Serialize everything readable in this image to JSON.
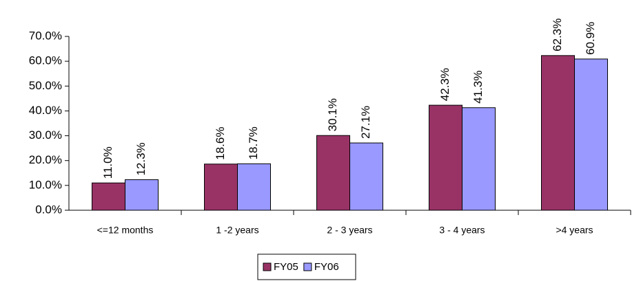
{
  "chart_data": {
    "type": "bar",
    "categories": [
      "<=12 months",
      "1 -2 years",
      "2 - 3 years",
      "3 - 4 years",
      ">4 years"
    ],
    "series": [
      {
        "name": "FY05",
        "color": "#993366",
        "values": [
          11.0,
          18.6,
          30.1,
          42.3,
          62.3
        ],
        "value_labels": [
          "11.0%",
          "18.6%",
          "30.1%",
          "42.3%",
          "62.3%"
        ]
      },
      {
        "name": "FY06",
        "color": "#9999ff",
        "values": [
          12.3,
          18.7,
          27.1,
          41.3,
          60.9
        ],
        "value_labels": [
          "12.3%",
          "18.7%",
          "27.1%",
          "41.3%",
          "60.9%"
        ]
      }
    ],
    "ylim": [
      0,
      70
    ],
    "yticks": [
      {
        "value": 0,
        "label": "0.0%"
      },
      {
        "value": 10,
        "label": "10.0%"
      },
      {
        "value": 20,
        "label": "20.0%"
      },
      {
        "value": 30,
        "label": "30.0%"
      },
      {
        "value": 40,
        "label": "40.0%"
      },
      {
        "value": 50,
        "label": "50.0%"
      },
      {
        "value": 60,
        "label": "60.0%"
      },
      {
        "value": 70,
        "label": "70.0%"
      }
    ],
    "legend": "bottom"
  }
}
